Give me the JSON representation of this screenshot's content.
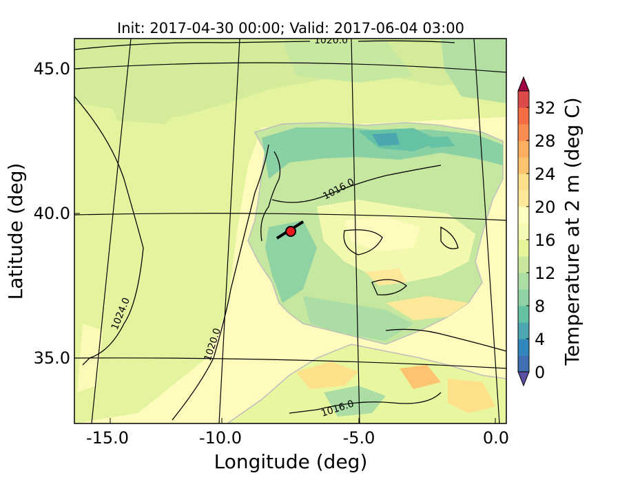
{
  "title": "Init: 2017-04-30 00:00; Valid: 2017-06-04 03:00",
  "xlabel": "Longitude (deg)",
  "ylabel": "Latitude (deg)",
  "x_ticks": [
    "-15.0",
    "-10.0",
    "-5.0",
    "0.0"
  ],
  "y_ticks": [
    "45.0",
    "40.0",
    "35.0"
  ],
  "colorbar": {
    "label": "Temperature at 2 m (deg C)",
    "ticks": [
      "0",
      "4",
      "8",
      "12",
      "16",
      "20",
      "24",
      "28",
      "32"
    ],
    "levels": [
      0,
      2,
      4,
      6,
      8,
      10,
      12,
      14,
      16,
      18,
      20,
      22,
      24,
      26,
      28,
      30,
      32,
      34
    ],
    "colors": [
      "#5e4fa2",
      "#3f6fb0",
      "#3288bd",
      "#4ba6b0",
      "#66c2a5",
      "#8fd2a3",
      "#abdda4",
      "#c8e89e",
      "#e6f598",
      "#f4fab1",
      "#ffffbf",
      "#fee89a",
      "#fee08b",
      "#fdc370",
      "#fdae61",
      "#f98b53",
      "#f46d43",
      "#dd4a4c",
      "#c5284f",
      "#9e0142"
    ]
  },
  "isobar_labels": [
    "1020.0",
    "1016.0",
    "1024.0",
    "1020.0",
    "1016.0"
  ],
  "marker": {
    "lon": -7.6,
    "lat": 39.3,
    "color": "#e41a1c"
  }
}
